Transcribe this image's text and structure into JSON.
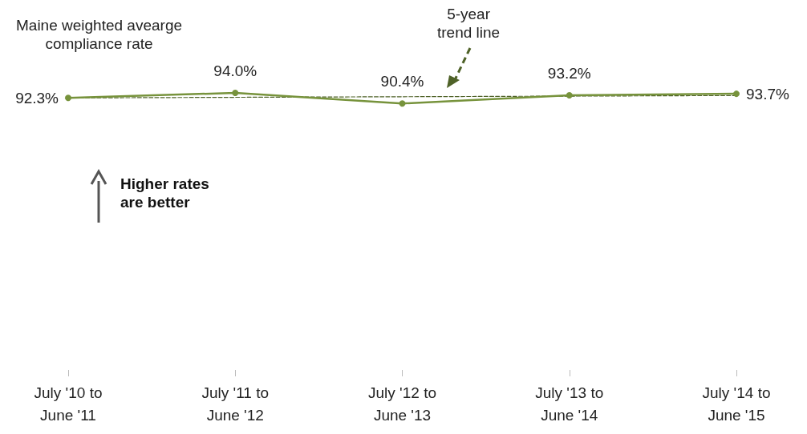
{
  "chart_data": {
    "type": "line",
    "categories": [
      "July '10 to\nJune '11",
      "July '11 to\nJune '12",
      "July '12 to\nJune '13",
      "July '13 to\nJune '14",
      "July '14 to\nJune '15"
    ],
    "tick_labels": "x",
    "grid": false,
    "marker": "circle",
    "series": [
      {
        "color": "#77933c",
        "values": [
          92.3,
          94.0,
          90.4,
          93.2,
          93.7
        ],
        "value_labels": [
          "92.3%",
          "94.0%",
          "90.4%",
          "93.2%",
          "93.7%"
        ]
      },
      {
        "type": "line",
        "color": "#4f6228",
        "values": [
          92.3,
          92.5,
          92.7,
          92.9,
          93.1
        ],
        "marker": "none",
        "line_style": "dashed"
      }
    ],
    "annotations": [
      "Maine weighted avearge\ncompliance rate",
      "5-year\ntrend line",
      "Higher rates\nare better"
    ]
  }
}
